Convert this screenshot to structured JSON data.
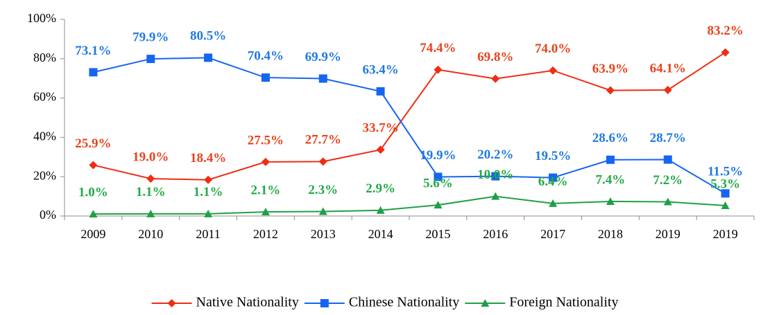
{
  "chart_data": {
    "type": "line",
    "categories": [
      "2009",
      "2010",
      "2011",
      "2012",
      "2013",
      "2014",
      "2015",
      "2016",
      "2017",
      "2018",
      "2019",
      "2019"
    ],
    "series": [
      {
        "name": "Native Nationality",
        "color": "#ee2d12",
        "label_color": "#e8431c",
        "marker": "diamond",
        "values": [
          25.9,
          19.0,
          18.4,
          27.5,
          27.7,
          33.7,
          74.4,
          69.8,
          74.0,
          63.9,
          64.1,
          83.2
        ],
        "value_labels": [
          "25.9%",
          "19.0%",
          "18.4%",
          "27.5%",
          "27.7%",
          "33.7%",
          "74.4%",
          "69.8%",
          "74.0%",
          "63.9%",
          "64.1%",
          "83.2%"
        ]
      },
      {
        "name": "Chinese Nationality",
        "color": "#1565f0",
        "label_color": "#1f7ae0",
        "marker": "square",
        "values": [
          73.1,
          79.9,
          80.5,
          70.4,
          69.9,
          63.4,
          19.9,
          20.2,
          19.5,
          28.6,
          28.7,
          11.5
        ],
        "value_labels": [
          "73.1%",
          "79.9%",
          "80.5%",
          "70.4%",
          "69.9%",
          "63.4%",
          "19.9%",
          "20.2%",
          "19.5%",
          "28.6%",
          "28.7%",
          "11.5%"
        ]
      },
      {
        "name": "Foreign Nationality",
        "color": "#1fa046",
        "label_color": "#22aa44",
        "marker": "triangle",
        "values": [
          1.0,
          1.1,
          1.1,
          2.1,
          2.3,
          2.9,
          5.6,
          10.0,
          6.4,
          7.4,
          7.2,
          5.3
        ],
        "value_labels": [
          "1.0%",
          "1.1%",
          "1.1%",
          "2.1%",
          "2.3%",
          "2.9%",
          "5.6%",
          "10.0%",
          "6.4%",
          "7.4%",
          "7.2%",
          "5.3%"
        ]
      }
    ],
    "ylim": [
      0,
      100
    ],
    "yticks": [
      {
        "value": 0,
        "label": "0%"
      },
      {
        "value": 20,
        "label": "20%"
      },
      {
        "value": 40,
        "label": "40%"
      },
      {
        "value": 60,
        "label": "60%"
      },
      {
        "value": 80,
        "label": "80%"
      },
      {
        "value": 100,
        "label": "100%"
      }
    ],
    "legend": "bottom",
    "grid": false
  }
}
